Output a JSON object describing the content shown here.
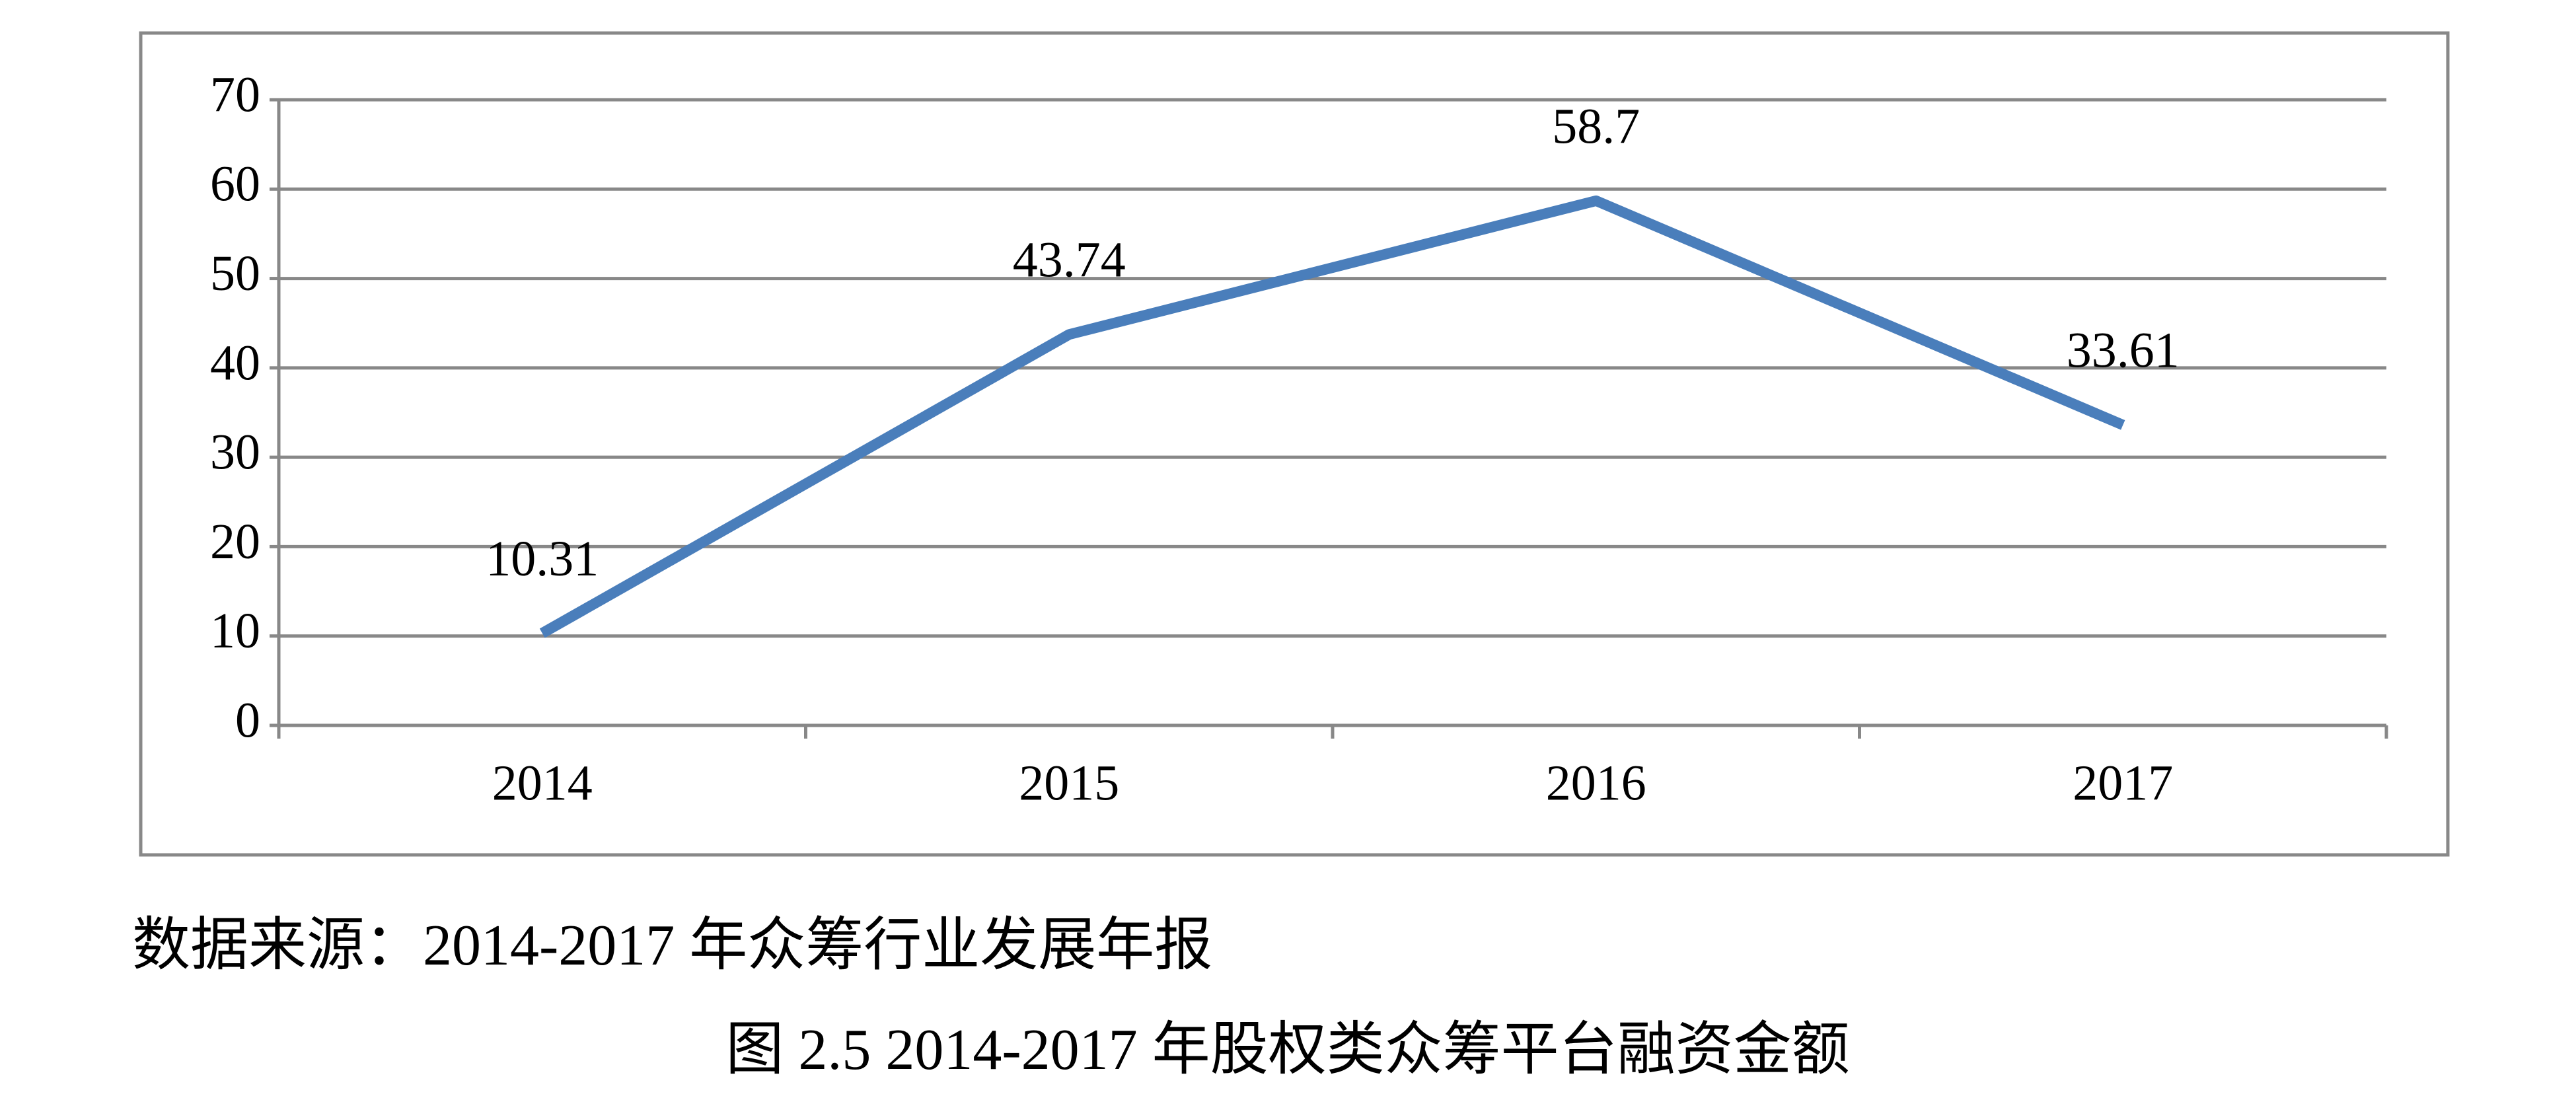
{
  "chart_data": {
    "type": "line",
    "categories": [
      "2014",
      "2015",
      "2016",
      "2017"
    ],
    "series": [
      {
        "name": null,
        "color": "#4a7ebb",
        "values": [
          10.31,
          43.74,
          58.7,
          33.61
        ]
      }
    ],
    "ylim": [
      0,
      70
    ],
    "yticks": [
      0,
      10,
      20,
      30,
      40,
      50,
      60,
      70
    ],
    "grid": true,
    "source": "数据来源：2014-2017 年众筹行业发展年报",
    "caption": "图  2.5 2014-2017 年股权类众筹平台融资金额"
  }
}
